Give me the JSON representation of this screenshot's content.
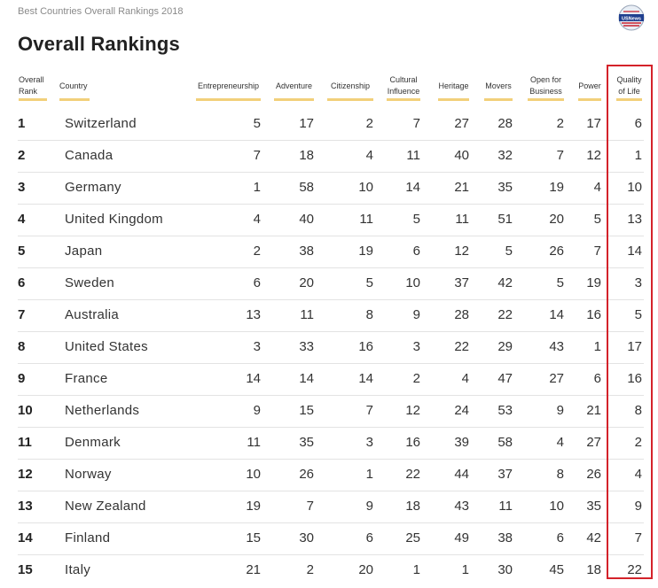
{
  "header": {
    "caption": "Best Countries Overall Rankings 2018",
    "title": "Overall Rankings",
    "logo_text": "USNews"
  },
  "columns": [
    {
      "key": "rank",
      "lines": [
        "Overall",
        "Rank"
      ]
    },
    {
      "key": "country",
      "lines": [
        "Country"
      ]
    },
    {
      "key": "entrepreneurship",
      "lines": [
        "Entrepreneurship"
      ]
    },
    {
      "key": "adventure",
      "lines": [
        "Adventure"
      ]
    },
    {
      "key": "citizenship",
      "lines": [
        "Citizenship"
      ]
    },
    {
      "key": "cultural_influence",
      "lines": [
        "Cultural",
        "Influence"
      ]
    },
    {
      "key": "heritage",
      "lines": [
        "Heritage"
      ]
    },
    {
      "key": "movers",
      "lines": [
        "Movers"
      ]
    },
    {
      "key": "open_for_business",
      "lines": [
        "Open for",
        "Business"
      ]
    },
    {
      "key": "power",
      "lines": [
        "Power"
      ]
    },
    {
      "key": "quality_of_life",
      "lines": [
        "Quality",
        "of Life"
      ]
    }
  ],
  "rows": [
    [
      "1",
      "Switzerland",
      "5",
      "17",
      "2",
      "7",
      "27",
      "28",
      "2",
      "17",
      "6"
    ],
    [
      "2",
      "Canada",
      "7",
      "18",
      "4",
      "11",
      "40",
      "32",
      "7",
      "12",
      "1"
    ],
    [
      "3",
      "Germany",
      "1",
      "58",
      "10",
      "14",
      "21",
      "35",
      "19",
      "4",
      "10"
    ],
    [
      "4",
      "United Kingdom",
      "4",
      "40",
      "11",
      "5",
      "11",
      "51",
      "20",
      "5",
      "13"
    ],
    [
      "5",
      "Japan",
      "2",
      "38",
      "19",
      "6",
      "12",
      "5",
      "26",
      "7",
      "14"
    ],
    [
      "6",
      "Sweden",
      "6",
      "20",
      "5",
      "10",
      "37",
      "42",
      "5",
      "19",
      "3"
    ],
    [
      "7",
      "Australia",
      "13",
      "11",
      "8",
      "9",
      "28",
      "22",
      "14",
      "16",
      "5"
    ],
    [
      "8",
      "United States",
      "3",
      "33",
      "16",
      "3",
      "22",
      "29",
      "43",
      "1",
      "17"
    ],
    [
      "9",
      "France",
      "14",
      "14",
      "14",
      "2",
      "4",
      "47",
      "27",
      "6",
      "16"
    ],
    [
      "10",
      "Netherlands",
      "9",
      "15",
      "7",
      "12",
      "24",
      "53",
      "9",
      "21",
      "8"
    ],
    [
      "11",
      "Denmark",
      "11",
      "35",
      "3",
      "16",
      "39",
      "58",
      "4",
      "27",
      "2"
    ],
    [
      "12",
      "Norway",
      "10",
      "26",
      "1",
      "22",
      "44",
      "37",
      "8",
      "26",
      "4"
    ],
    [
      "13",
      "New Zealand",
      "19",
      "7",
      "9",
      "18",
      "43",
      "11",
      "10",
      "35",
      "9"
    ],
    [
      "14",
      "Finland",
      "15",
      "30",
      "6",
      "25",
      "49",
      "38",
      "6",
      "42",
      "7"
    ],
    [
      "15",
      "Italy",
      "21",
      "2",
      "20",
      "1",
      "1",
      "30",
      "45",
      "18",
      "22"
    ]
  ],
  "highlighted_column": "quality_of_life",
  "colors": {
    "header_underline": "#f2d07a",
    "highlight_border": "#d4222a",
    "row_divider": "#e3e3e3",
    "logo_blue": "#1f3f8f",
    "logo_red": "#c8202f"
  }
}
